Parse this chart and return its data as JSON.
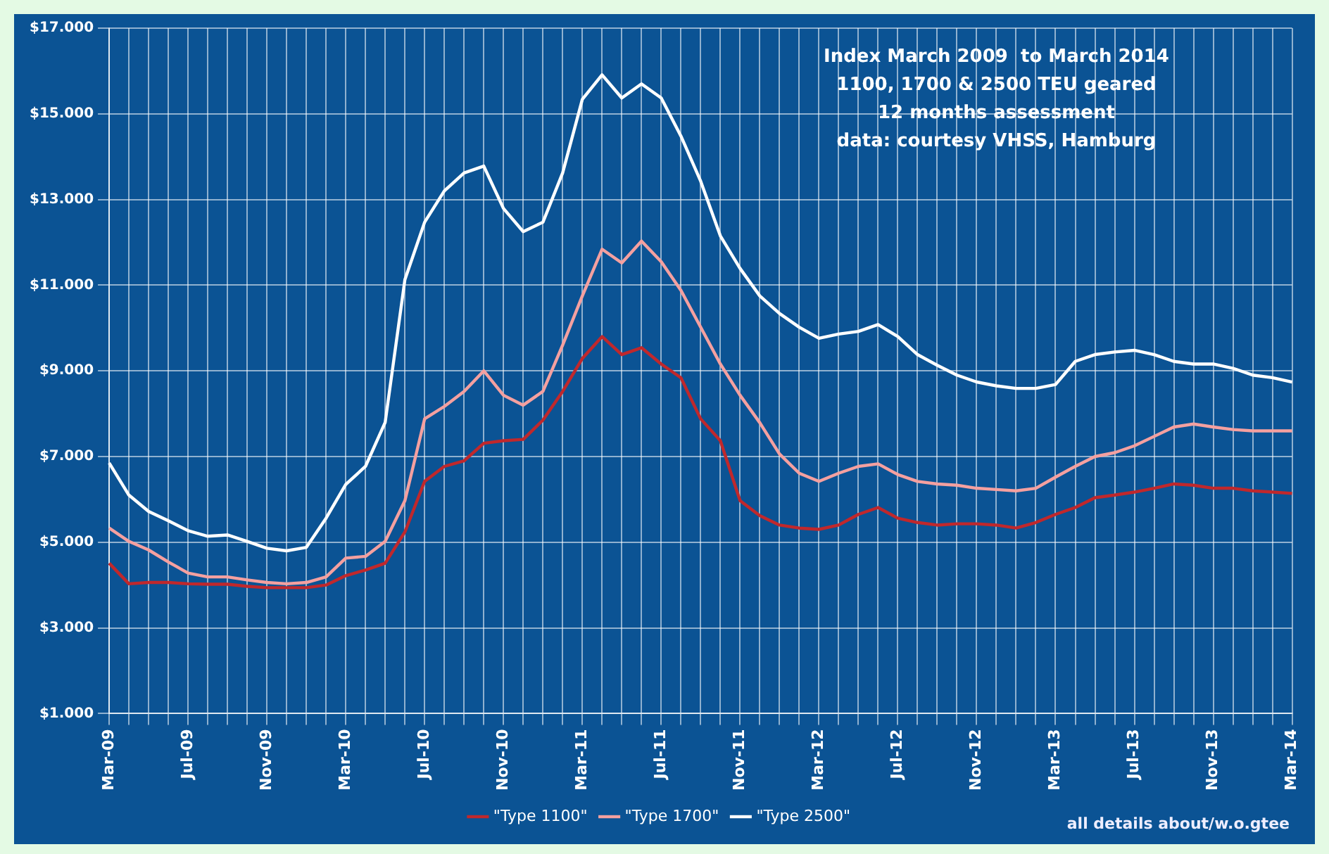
{
  "chart_data": {
    "type": "line",
    "title": "Index March 2009  to March 2014",
    "subtitle": "1100, 1700 & 2500 TEU geared",
    "annotations": [
      "12 months assessment",
      "data: courtesy VHSS, Hamburg",
      "all details about/w.o.gtee"
    ],
    "categories": [
      "Mar-09",
      null,
      null,
      null,
      "Jul-09",
      null,
      null,
      null,
      "Nov-09",
      null,
      null,
      null,
      "Mar-10",
      null,
      null,
      null,
      "Jul-10",
      null,
      null,
      null,
      "Nov-10",
      null,
      null,
      null,
      "Mar-11",
      null,
      null,
      null,
      "Jul-11",
      null,
      null,
      null,
      "Nov-11",
      null,
      null,
      null,
      "Mar-12",
      null,
      null,
      null,
      "Jul-12",
      null,
      null,
      null,
      "Nov-12",
      null,
      null,
      null,
      "Mar-13",
      null,
      null,
      null,
      "Jul-13",
      null,
      null,
      null,
      "Nov-13",
      null,
      null,
      null,
      "Mar-14"
    ],
    "series": [
      {
        "name": "\"Type 1100\"",
        "color": "#c0282c",
        "values": [
          4510,
          4030,
          4060,
          4060,
          4030,
          4020,
          4020,
          3970,
          3940,
          3940,
          3940,
          4000,
          4220,
          4350,
          4510,
          5240,
          6420,
          6770,
          6900,
          7310,
          7370,
          7400,
          7850,
          8520,
          9290,
          9800,
          9380,
          9540,
          9160,
          8840,
          7880,
          7370,
          5970,
          5620,
          5400,
          5330,
          5300,
          5400,
          5650,
          5810,
          5560,
          5460,
          5400,
          5430,
          5430,
          5400,
          5330,
          5460,
          5650,
          5810,
          6040,
          6100,
          6170,
          6260,
          6360,
          6330,
          6260,
          6260,
          6200,
          6170,
          6140
        ]
      },
      {
        "name": "\"Type 1700\"",
        "color": "#f4a0a0",
        "values": [
          5330,
          5020,
          4820,
          4540,
          4280,
          4190,
          4190,
          4120,
          4060,
          4030,
          4060,
          4190,
          4630,
          4670,
          5020,
          5970,
          7880,
          8170,
          8520,
          9000,
          8430,
          8200,
          8520,
          9600,
          10750,
          11840,
          11520,
          12030,
          11550,
          10880,
          10020,
          9160,
          8430,
          7790,
          7060,
          6610,
          6420,
          6610,
          6770,
          6830,
          6580,
          6420,
          6360,
          6330,
          6260,
          6230,
          6200,
          6260,
          6520,
          6770,
          7000,
          7090,
          7250,
          7470,
          7690,
          7760,
          7690,
          7630,
          7600,
          7600,
          7600
        ]
      },
      {
        "name": "\"Type 2500\"",
        "color": "#ffffff",
        "values": [
          6850,
          6100,
          5720,
          5500,
          5270,
          5140,
          5170,
          5020,
          4860,
          4800,
          4880,
          5560,
          6350,
          6770,
          7800,
          11130,
          12470,
          13200,
          13620,
          13780,
          12790,
          12250,
          12470,
          13620,
          15340,
          15910,
          15370,
          15700,
          15370,
          14480,
          13430,
          12150,
          11390,
          10750,
          10340,
          10020,
          9760,
          9860,
          9920,
          10080,
          9800,
          9380,
          9130,
          8900,
          8740,
          8650,
          8590,
          8590,
          8680,
          9220,
          9380,
          9440,
          9480,
          9380,
          9220,
          9160,
          9160,
          9060,
          8900,
          8840,
          8740
        ]
      }
    ],
    "ylim": [
      1000,
      17000
    ],
    "yticks": [
      {
        "value": 1000,
        "label": "$1.000"
      },
      {
        "value": 3000,
        "label": "$3.000"
      },
      {
        "value": 5000,
        "label": "$5.000"
      },
      {
        "value": 7000,
        "label": "$7.000"
      },
      {
        "value": 9000,
        "label": "$9.000"
      },
      {
        "value": 11000,
        "label": "$11.000"
      },
      {
        "value": 13000,
        "label": "$13.000"
      },
      {
        "value": 15000,
        "label": "$15.000"
      },
      {
        "value": 17000,
        "label": "$17.000"
      }
    ],
    "grid": true,
    "legend": "bottom",
    "marker": "none",
    "line_style": "solid"
  }
}
